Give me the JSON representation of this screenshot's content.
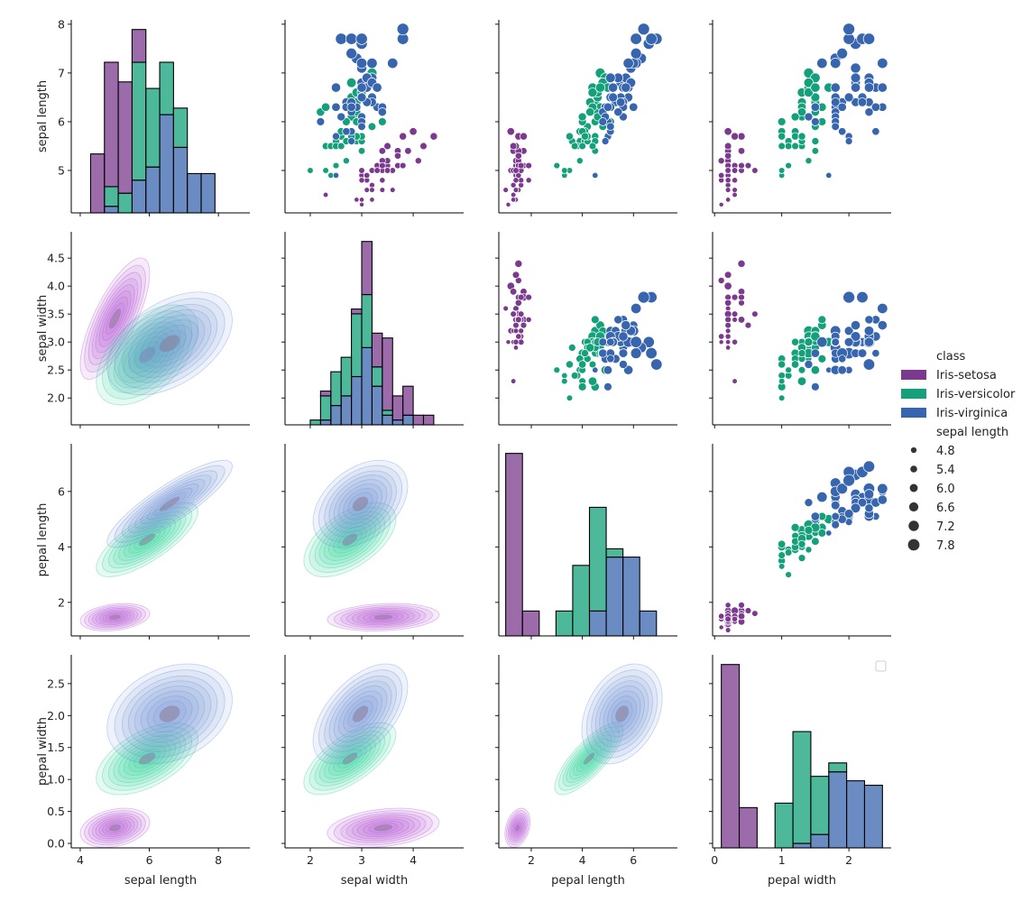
{
  "chart_data": {
    "type": "pairplot",
    "diagonal": "stacked histogram",
    "upper": "scatter",
    "lower": "kde",
    "variables": [
      {
        "label": "sepal length",
        "xlim": [
          3.74,
          8.91
        ],
        "ylim": [
          4.13,
          8.09
        ],
        "xticks": [
          "4",
          "6",
          "8"
        ],
        "yticks": [
          "5",
          "6",
          "7",
          "8"
        ],
        "hist_bins": [
          4.3,
          7.9,
          9
        ]
      },
      {
        "label": "sepal width",
        "xlim": [
          1.51,
          4.98
        ],
        "ylim": [
          1.52,
          4.97
        ],
        "xticks": [
          "2",
          "3",
          "4"
        ],
        "yticks": [
          "2.0",
          "2.5",
          "3.0",
          "3.5",
          "4.0",
          "4.5"
        ],
        "hist_bins": [
          2.0,
          4.4,
          12
        ]
      },
      {
        "label": "pepal length",
        "xlim": [
          0.73,
          7.72
        ],
        "ylim": [
          0.79,
          7.72
        ],
        "xticks": [
          "2",
          "4",
          "6"
        ],
        "yticks": [
          "2",
          "4",
          "6"
        ],
        "hist_bins": [
          1.0,
          6.9,
          9
        ]
      },
      {
        "label": "pepal width",
        "xlim": [
          -0.03,
          2.63
        ],
        "ylim": [
          -0.07,
          2.95
        ],
        "xticks": [
          "0",
          "1",
          "2"
        ],
        "yticks": [
          "0.0",
          "0.5",
          "1.0",
          "1.5",
          "2.0",
          "2.5"
        ],
        "hist_bins": [
          0.1,
          2.5,
          9
        ]
      }
    ],
    "legend": {
      "placement": "right",
      "hue_title": "class",
      "size_title": "sepal length",
      "size_levels": [
        "4.8",
        "5.4",
        "6.0",
        "6.6",
        "7.2",
        "7.8"
      ]
    },
    "series": [
      {
        "name": "Iris-setosa",
        "color": "#7b3a8e",
        "kde_color": "#b65bd4",
        "points": [
          [
            5.1,
            3.5,
            1.4,
            0.2
          ],
          [
            4.9,
            3.0,
            1.4,
            0.2
          ],
          [
            4.7,
            3.2,
            1.3,
            0.2
          ],
          [
            4.6,
            3.1,
            1.5,
            0.2
          ],
          [
            5.0,
            3.6,
            1.4,
            0.2
          ],
          [
            5.4,
            3.9,
            1.7,
            0.4
          ],
          [
            4.6,
            3.4,
            1.4,
            0.3
          ],
          [
            5.0,
            3.4,
            1.5,
            0.2
          ],
          [
            4.4,
            2.9,
            1.4,
            0.2
          ],
          [
            4.9,
            3.1,
            1.5,
            0.1
          ],
          [
            5.4,
            3.7,
            1.5,
            0.2
          ],
          [
            4.8,
            3.4,
            1.6,
            0.2
          ],
          [
            4.8,
            3.0,
            1.4,
            0.1
          ],
          [
            4.3,
            3.0,
            1.1,
            0.1
          ],
          [
            5.8,
            4.0,
            1.2,
            0.2
          ],
          [
            5.7,
            4.4,
            1.5,
            0.4
          ],
          [
            5.4,
            3.9,
            1.3,
            0.4
          ],
          [
            5.1,
            3.5,
            1.4,
            0.3
          ],
          [
            5.7,
            3.8,
            1.7,
            0.3
          ],
          [
            5.1,
            3.8,
            1.5,
            0.3
          ],
          [
            5.4,
            3.4,
            1.7,
            0.2
          ],
          [
            5.1,
            3.7,
            1.5,
            0.4
          ],
          [
            4.6,
            3.6,
            1.0,
            0.2
          ],
          [
            5.1,
            3.3,
            1.7,
            0.5
          ],
          [
            4.8,
            3.4,
            1.9,
            0.2
          ],
          [
            5.0,
            3.0,
            1.6,
            0.2
          ],
          [
            5.0,
            3.4,
            1.6,
            0.4
          ],
          [
            5.2,
            3.5,
            1.5,
            0.2
          ],
          [
            5.2,
            3.4,
            1.4,
            0.2
          ],
          [
            4.7,
            3.2,
            1.6,
            0.2
          ],
          [
            4.8,
            3.1,
            1.6,
            0.2
          ],
          [
            5.4,
            3.4,
            1.5,
            0.4
          ],
          [
            5.2,
            4.1,
            1.5,
            0.1
          ],
          [
            5.5,
            4.2,
            1.4,
            0.2
          ],
          [
            4.9,
            3.1,
            1.5,
            0.1
          ],
          [
            5.0,
            3.2,
            1.2,
            0.2
          ],
          [
            5.5,
            3.5,
            1.3,
            0.2
          ],
          [
            4.9,
            3.1,
            1.5,
            0.1
          ],
          [
            4.4,
            3.0,
            1.3,
            0.2
          ],
          [
            5.1,
            3.4,
            1.5,
            0.2
          ],
          [
            5.0,
            3.5,
            1.3,
            0.3
          ],
          [
            4.5,
            2.3,
            1.3,
            0.3
          ],
          [
            4.4,
            3.2,
            1.3,
            0.2
          ],
          [
            5.0,
            3.5,
            1.6,
            0.6
          ],
          [
            5.1,
            3.8,
            1.9,
            0.4
          ],
          [
            4.8,
            3.0,
            1.4,
            0.3
          ],
          [
            5.1,
            3.8,
            1.6,
            0.2
          ],
          [
            4.6,
            3.2,
            1.4,
            0.2
          ],
          [
            5.3,
            3.7,
            1.5,
            0.2
          ],
          [
            5.0,
            3.3,
            1.4,
            0.2
          ]
        ]
      },
      {
        "name": "Iris-versicolor",
        "color": "#13a07a",
        "kde_color": "#2ed49a",
        "points": [
          [
            7.0,
            3.2,
            4.7,
            1.4
          ],
          [
            6.4,
            3.2,
            4.5,
            1.5
          ],
          [
            6.9,
            3.1,
            4.9,
            1.5
          ],
          [
            5.5,
            2.3,
            4.0,
            1.3
          ],
          [
            6.5,
            2.8,
            4.6,
            1.5
          ],
          [
            5.7,
            2.8,
            4.5,
            1.3
          ],
          [
            6.3,
            3.3,
            4.7,
            1.6
          ],
          [
            4.9,
            2.4,
            3.3,
            1.0
          ],
          [
            6.6,
            2.9,
            4.6,
            1.3
          ],
          [
            5.2,
            2.7,
            3.9,
            1.4
          ],
          [
            5.0,
            2.0,
            3.5,
            1.0
          ],
          [
            5.9,
            3.0,
            4.2,
            1.5
          ],
          [
            6.0,
            2.2,
            4.0,
            1.0
          ],
          [
            6.1,
            2.9,
            4.7,
            1.4
          ],
          [
            5.6,
            2.9,
            3.6,
            1.3
          ],
          [
            6.7,
            3.1,
            4.4,
            1.4
          ],
          [
            5.6,
            3.0,
            4.5,
            1.5
          ],
          [
            5.8,
            2.7,
            4.1,
            1.0
          ],
          [
            6.2,
            2.2,
            4.5,
            1.5
          ],
          [
            5.6,
            2.5,
            3.9,
            1.1
          ],
          [
            5.9,
            3.2,
            4.8,
            1.8
          ],
          [
            6.1,
            2.8,
            4.0,
            1.3
          ],
          [
            6.3,
            2.5,
            4.9,
            1.5
          ],
          [
            6.1,
            2.8,
            4.7,
            1.2
          ],
          [
            6.4,
            2.9,
            4.3,
            1.3
          ],
          [
            6.6,
            3.0,
            4.4,
            1.4
          ],
          [
            6.8,
            2.8,
            4.8,
            1.4
          ],
          [
            6.7,
            3.0,
            5.0,
            1.7
          ],
          [
            6.0,
            2.9,
            4.5,
            1.5
          ],
          [
            5.7,
            2.6,
            3.5,
            1.0
          ],
          [
            5.5,
            2.4,
            3.8,
            1.1
          ],
          [
            5.5,
            2.4,
            3.7,
            1.0
          ],
          [
            5.8,
            2.7,
            3.9,
            1.2
          ],
          [
            6.0,
            2.7,
            5.1,
            1.6
          ],
          [
            5.4,
            3.0,
            4.5,
            1.5
          ],
          [
            6.0,
            3.4,
            4.5,
            1.6
          ],
          [
            6.7,
            3.1,
            4.7,
            1.5
          ],
          [
            6.3,
            2.3,
            4.4,
            1.3
          ],
          [
            5.6,
            3.0,
            4.1,
            1.3
          ],
          [
            5.5,
            2.5,
            4.0,
            1.3
          ],
          [
            5.5,
            2.6,
            4.4,
            1.2
          ],
          [
            6.1,
            3.0,
            4.6,
            1.4
          ],
          [
            5.8,
            2.6,
            4.0,
            1.2
          ],
          [
            5.0,
            2.3,
            3.3,
            1.0
          ],
          [
            5.6,
            2.7,
            4.2,
            1.3
          ],
          [
            5.7,
            3.0,
            4.2,
            1.2
          ],
          [
            5.7,
            2.9,
            4.2,
            1.3
          ],
          [
            6.2,
            2.9,
            4.3,
            1.3
          ],
          [
            5.1,
            2.5,
            3.0,
            1.1
          ],
          [
            5.7,
            2.8,
            4.1,
            1.3
          ]
        ]
      },
      {
        "name": "Iris-virginica",
        "color": "#3866ae",
        "kde_color": "#7390d8",
        "points": [
          [
            6.3,
            3.3,
            6.0,
            2.5
          ],
          [
            5.8,
            2.7,
            5.1,
            1.9
          ],
          [
            7.1,
            3.0,
            5.9,
            2.1
          ],
          [
            6.3,
            2.9,
            5.6,
            1.8
          ],
          [
            6.5,
            3.0,
            5.8,
            2.2
          ],
          [
            7.6,
            3.0,
            6.6,
            2.1
          ],
          [
            4.9,
            2.5,
            4.5,
            1.7
          ],
          [
            7.3,
            2.9,
            6.3,
            1.8
          ],
          [
            6.7,
            2.5,
            5.8,
            1.8
          ],
          [
            7.2,
            3.6,
            6.1,
            2.5
          ],
          [
            6.5,
            3.2,
            5.1,
            2.0
          ],
          [
            6.4,
            2.7,
            5.3,
            1.9
          ],
          [
            6.8,
            3.0,
            5.5,
            2.1
          ],
          [
            5.7,
            2.5,
            5.0,
            2.0
          ],
          [
            5.8,
            2.8,
            5.1,
            2.4
          ],
          [
            6.4,
            3.2,
            5.3,
            2.3
          ],
          [
            6.5,
            3.0,
            5.5,
            1.8
          ],
          [
            7.7,
            3.8,
            6.7,
            2.2
          ],
          [
            7.7,
            2.6,
            6.9,
            2.3
          ],
          [
            6.0,
            2.2,
            5.0,
            1.5
          ],
          [
            6.9,
            3.2,
            5.7,
            2.3
          ],
          [
            5.6,
            2.8,
            4.9,
            2.0
          ],
          [
            7.7,
            2.8,
            6.7,
            2.0
          ],
          [
            6.3,
            2.7,
            4.9,
            1.8
          ],
          [
            6.7,
            3.3,
            5.7,
            2.1
          ],
          [
            7.2,
            3.2,
            6.0,
            1.8
          ],
          [
            6.2,
            2.8,
            4.8,
            1.8
          ],
          [
            6.1,
            3.0,
            4.9,
            1.8
          ],
          [
            6.4,
            2.8,
            5.6,
            2.1
          ],
          [
            7.2,
            3.0,
            5.8,
            1.6
          ],
          [
            7.4,
            2.8,
            6.1,
            1.9
          ],
          [
            7.9,
            3.8,
            6.4,
            2.0
          ],
          [
            6.4,
            2.8,
            5.6,
            2.2
          ],
          [
            6.3,
            2.8,
            5.1,
            1.5
          ],
          [
            6.1,
            2.6,
            5.6,
            1.4
          ],
          [
            7.7,
            3.0,
            6.1,
            2.3
          ],
          [
            6.3,
            3.4,
            5.6,
            2.4
          ],
          [
            6.4,
            3.1,
            5.5,
            1.8
          ],
          [
            6.0,
            3.0,
            4.8,
            1.8
          ],
          [
            6.9,
            3.1,
            5.4,
            2.1
          ],
          [
            6.7,
            3.1,
            5.6,
            2.4
          ],
          [
            6.9,
            3.1,
            5.1,
            2.3
          ],
          [
            5.8,
            2.7,
            5.1,
            1.9
          ],
          [
            6.8,
            3.2,
            5.9,
            2.3
          ],
          [
            6.7,
            3.3,
            5.7,
            2.5
          ],
          [
            6.7,
            3.0,
            5.2,
            2.3
          ],
          [
            6.3,
            2.5,
            5.0,
            1.9
          ],
          [
            6.5,
            3.0,
            5.2,
            2.0
          ],
          [
            6.2,
            3.4,
            5.4,
            2.3
          ],
          [
            5.9,
            3.0,
            5.1,
            1.8
          ]
        ]
      }
    ]
  }
}
